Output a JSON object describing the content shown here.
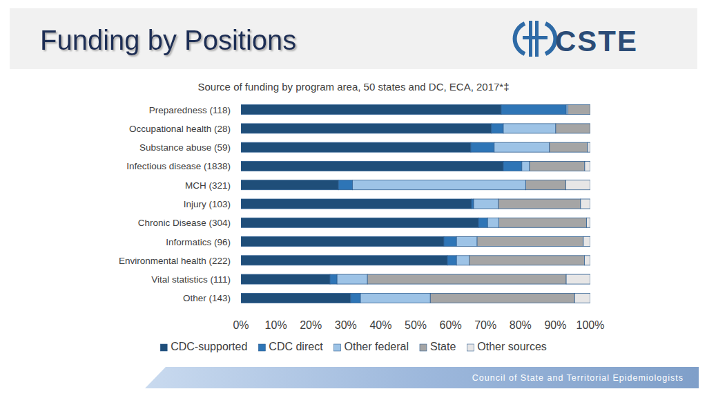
{
  "page": {
    "heading": "Funding by Positions",
    "logo": "CSTE",
    "footer": "Council of State and Territorial Epidemiologists"
  },
  "chart_data": {
    "type": "bar",
    "title": "Source of funding by program area, 50 states and DC, ECA, 2017*‡",
    "orientation": "horizontal",
    "stacked": true,
    "grid": false,
    "legend": "bottom",
    "categories": [
      "Preparedness (118)",
      "Occupational health (28)",
      "Substance abuse (59)",
      "Infectious disease (1838)",
      "MCH (321)",
      "Injury (103)",
      "Chronic Disease (304)",
      "Informatics (96)",
      "Environmental health (222)",
      "Vital statistics (111)",
      "Other (143)"
    ],
    "series": [
      {
        "name": "CDC-supported",
        "color": "#1f4e79",
        "values": [
          74.5,
          71.7,
          65.8,
          75.1,
          27.9,
          66.0,
          68.0,
          58.1,
          59.1,
          25.5,
          31.4
        ]
      },
      {
        "name": "CDC direct",
        "color": "#2e75b6",
        "values": [
          18.6,
          3.4,
          6.7,
          5.3,
          4.0,
          0.6,
          2.6,
          3.6,
          2.6,
          2.0,
          2.8
        ]
      },
      {
        "name": "Other federal",
        "color": "#9dc3e6",
        "values": [
          0.5,
          15.0,
          15.8,
          2.2,
          49.6,
          7.1,
          3.2,
          5.9,
          3.6,
          8.7,
          20.0
        ]
      },
      {
        "name": "State",
        "color": "#a5a5a5",
        "values": [
          6.4,
          9.9,
          10.9,
          15.8,
          11.5,
          23.5,
          25.1,
          30.4,
          33.0,
          56.9,
          41.3
        ]
      },
      {
        "name": "Other sources",
        "color": "#e7e6e6",
        "values": [
          0,
          0,
          0.8,
          1.6,
          7.0,
          2.8,
          1.1,
          2.0,
          1.7,
          6.9,
          4.5
        ]
      }
    ],
    "xlim": [
      0,
      100
    ],
    "xticks": [
      {
        "value": 0,
        "label": "0%"
      },
      {
        "value": 10,
        "label": "10%"
      },
      {
        "value": 20,
        "label": "20%"
      },
      {
        "value": 30,
        "label": "30%"
      },
      {
        "value": 40,
        "label": "40%"
      },
      {
        "value": 50,
        "label": "50%"
      },
      {
        "value": 60,
        "label": "60%"
      },
      {
        "value": 70,
        "label": "70%"
      },
      {
        "value": 80,
        "label": "80%"
      },
      {
        "value": 90,
        "label": "90%"
      },
      {
        "value": 100,
        "label": "100%"
      }
    ]
  }
}
